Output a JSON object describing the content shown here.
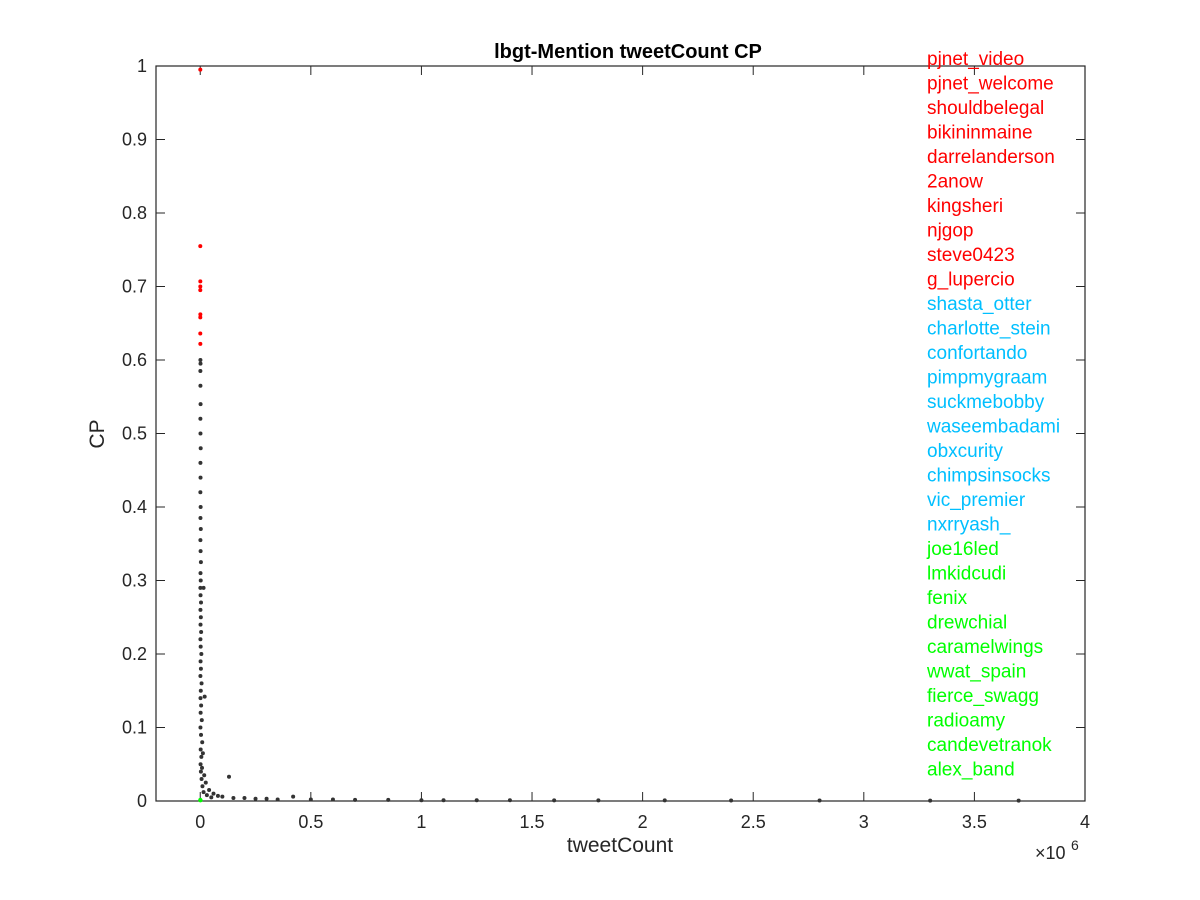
{
  "chart_data": {
    "type": "scatter",
    "title": "lbgt-Mention tweetCount CP",
    "xlabel": "tweetCount",
    "ylabel": "CP",
    "x_exponent_label": "×10",
    "x_exponent_power": "6",
    "xlim": [
      -200000,
      4000000
    ],
    "ylim": [
      0,
      1
    ],
    "xticks": [
      0,
      500000,
      1000000,
      1500000,
      2000000,
      2500000,
      3000000,
      3500000,
      4000000
    ],
    "xtick_labels": [
      "0",
      "0.5",
      "1",
      "1.5",
      "2",
      "2.5",
      "3",
      "3.5",
      "4"
    ],
    "yticks": [
      0,
      0.1,
      0.2,
      0.3,
      0.4,
      0.5,
      0.6,
      0.7,
      0.8,
      0.9,
      1
    ],
    "ytick_labels": [
      "0",
      "0.1",
      "0.2",
      "0.3",
      "0.4",
      "0.5",
      "0.6",
      "0.7",
      "0.8",
      "0.9",
      "1"
    ],
    "grid": false,
    "colors": {
      "top": "#ff0000",
      "middle": "#00bfff",
      "bottom": "#00ff00",
      "other": "#333333",
      "axis": "#262626"
    },
    "series": [
      {
        "group": "top",
        "points": [
          [
            300,
            0.995
          ],
          [
            250,
            0.755
          ],
          [
            400,
            0.707
          ],
          [
            350,
            0.7
          ],
          [
            200,
            0.695
          ],
          [
            500,
            0.662
          ],
          [
            300,
            0.658
          ],
          [
            250,
            0.636
          ],
          [
            450,
            0.622
          ]
        ]
      },
      {
        "group": "other",
        "points": [
          [
            800,
            0.6
          ],
          [
            1200,
            0.595
          ],
          [
            600,
            0.585
          ],
          [
            900,
            0.565
          ],
          [
            1500,
            0.54
          ],
          [
            700,
            0.52
          ],
          [
            1100,
            0.5
          ],
          [
            2000,
            0.48
          ],
          [
            900,
            0.46
          ],
          [
            1300,
            0.44
          ],
          [
            600,
            0.42
          ],
          [
            1800,
            0.4
          ],
          [
            1000,
            0.385
          ],
          [
            2500,
            0.37
          ],
          [
            800,
            0.355
          ],
          [
            1600,
            0.34
          ],
          [
            3000,
            0.325
          ],
          [
            1200,
            0.31
          ],
          [
            2200,
            0.3
          ],
          [
            700,
            0.29
          ],
          [
            1400,
            0.28
          ],
          [
            3500,
            0.27
          ],
          [
            1000,
            0.26
          ],
          [
            2700,
            0.25
          ],
          [
            15000,
            0.29
          ],
          [
            1300,
            0.24
          ],
          [
            4000,
            0.23
          ],
          [
            900,
            0.22
          ],
          [
            2000,
            0.21
          ],
          [
            5000,
            0.2
          ],
          [
            1500,
            0.19
          ],
          [
            3000,
            0.18
          ],
          [
            800,
            0.17
          ],
          [
            6000,
            0.16
          ],
          [
            2500,
            0.15
          ],
          [
            1200,
            0.14
          ],
          [
            20000,
            0.142
          ],
          [
            4000,
            0.13
          ],
          [
            1800,
            0.12
          ],
          [
            7000,
            0.11
          ],
          [
            1000,
            0.1
          ],
          [
            3500,
            0.09
          ],
          [
            9000,
            0.08
          ],
          [
            2000,
            0.07
          ],
          [
            12000,
            0.065
          ],
          [
            5000,
            0.06
          ],
          [
            1500,
            0.05
          ],
          [
            8000,
            0.045
          ],
          [
            3000,
            0.04
          ],
          [
            18000,
            0.035
          ],
          [
            130000,
            0.033
          ],
          [
            6000,
            0.03
          ],
          [
            25000,
            0.025
          ],
          [
            10000,
            0.02
          ],
          [
            40000,
            0.015
          ],
          [
            15000,
            0.012
          ],
          [
            60000,
            0.01
          ],
          [
            30000,
            0.008
          ],
          [
            80000,
            0.007
          ],
          [
            100000,
            0.006
          ],
          [
            50000,
            0.005
          ],
          [
            150000,
            0.004
          ],
          [
            200000,
            0.004
          ],
          [
            250000,
            0.003
          ],
          [
            300000,
            0.003
          ],
          [
            420000,
            0.006
          ],
          [
            350000,
            0.002
          ],
          [
            500000,
            0.002
          ],
          [
            600000,
            0.002
          ],
          [
            700000,
            0.0015
          ],
          [
            850000,
            0.0015
          ],
          [
            1000000,
            0.001
          ],
          [
            1100000,
            0.001
          ],
          [
            1250000,
            0.001
          ],
          [
            1400000,
            0.001
          ],
          [
            1600000,
            0.0008
          ],
          [
            1800000,
            0.0008
          ],
          [
            2100000,
            0.0008
          ],
          [
            2400000,
            0.0006
          ],
          [
            2800000,
            0.0006
          ],
          [
            3300000,
            0.0005
          ],
          [
            3700000,
            0.0005
          ]
        ]
      },
      {
        "group": "bottom",
        "points": [
          [
            500,
            0.001
          ],
          [
            900,
            0.001
          ],
          [
            300,
            0.0015
          ]
        ]
      }
    ],
    "annotations": [
      {
        "text": "pjnet_video",
        "group": "top"
      },
      {
        "text": "pjnet_welcome",
        "group": "top"
      },
      {
        "text": "shouldbelegal",
        "group": "top"
      },
      {
        "text": "bikininmaine",
        "group": "top"
      },
      {
        "text": "darrelanderson",
        "group": "top"
      },
      {
        "text": "2anow",
        "group": "top"
      },
      {
        "text": "kingsheri",
        "group": "top"
      },
      {
        "text": "njgop",
        "group": "top"
      },
      {
        "text": "steve0423",
        "group": "top"
      },
      {
        "text": "g_lupercio",
        "group": "top"
      },
      {
        "text": "shasta_otter",
        "group": "middle"
      },
      {
        "text": "charlotte_stein",
        "group": "middle"
      },
      {
        "text": "confortando",
        "group": "middle"
      },
      {
        "text": "pimpmygraam",
        "group": "middle"
      },
      {
        "text": "suckmebobby",
        "group": "middle"
      },
      {
        "text": "waseembadami",
        "group": "middle"
      },
      {
        "text": "obxcurity",
        "group": "middle"
      },
      {
        "text": "chimpsinsocks",
        "group": "middle"
      },
      {
        "text": "vic_premier",
        "group": "middle"
      },
      {
        "text": "nxrryash_",
        "group": "middle"
      },
      {
        "text": "joe16led",
        "group": "bottom"
      },
      {
        "text": "lmkidcudi",
        "group": "bottom"
      },
      {
        "text": "fenix",
        "group": "bottom"
      },
      {
        "text": "drewchial",
        "group": "bottom"
      },
      {
        "text": "caramelwings",
        "group": "bottom"
      },
      {
        "text": "wwat_spain",
        "group": "bottom"
      },
      {
        "text": "fierce_swagg",
        "group": "bottom"
      },
      {
        "text": "radioamy",
        "group": "bottom"
      },
      {
        "text": "candevetranok",
        "group": "bottom"
      },
      {
        "text": "alex_band",
        "group": "bottom"
      }
    ]
  }
}
